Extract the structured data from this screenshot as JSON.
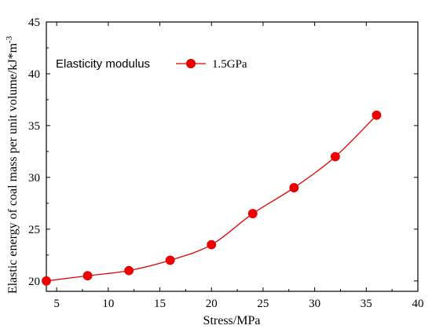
{
  "chart_data": {
    "type": "line",
    "xlabel": "Stress/MPa",
    "ylabel": "Elastic energy of coal mass per unit volume/kJ*m",
    "ylabel_superscript": "-3",
    "xlim": [
      4,
      40
    ],
    "ylim": [
      19,
      45
    ],
    "xticks": [
      5,
      10,
      15,
      20,
      25,
      30,
      35,
      40
    ],
    "yticks": [
      20,
      25,
      30,
      35,
      40,
      45
    ],
    "legend_title": "Elasticity modulus",
    "legend_placement": "top-left",
    "grid": false,
    "series": [
      {
        "name": "1.5GPa",
        "color": "#e00000",
        "marker_color": "#ee0000",
        "x": [
          4,
          8,
          12,
          16,
          20,
          24,
          28,
          32,
          36
        ],
        "y": [
          20,
          20.5,
          21,
          22,
          23.5,
          26.5,
          29,
          32,
          36
        ]
      }
    ]
  }
}
